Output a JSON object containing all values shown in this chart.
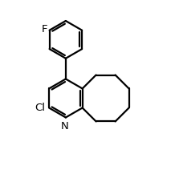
{
  "bg_color": "#ffffff",
  "line_color": "#000000",
  "line_width": 1.6,
  "font_size": 9.5,
  "F_label": "F",
  "Cl_label": "Cl",
  "N_label": "N",
  "figsize": [
    2.18,
    2.22
  ],
  "dpi": 100,
  "xlim": [
    -0.5,
    9.5
  ],
  "ylim": [
    -0.5,
    10.0
  ]
}
